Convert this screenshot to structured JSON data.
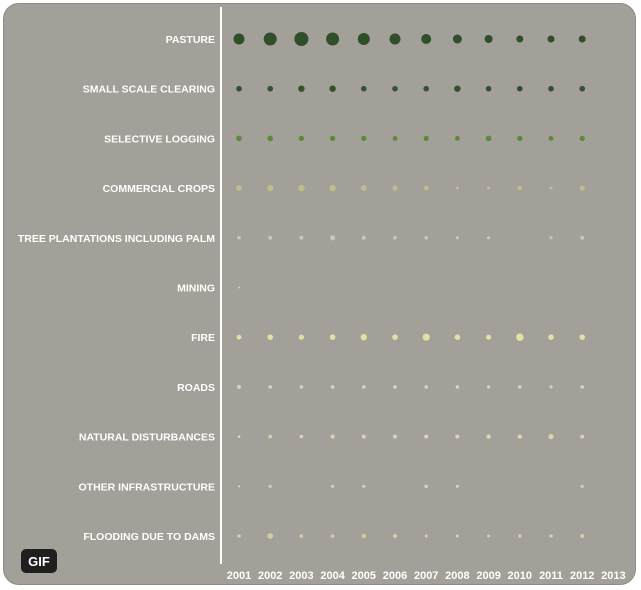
{
  "gif_badge": "GIF",
  "colors": {
    "background": "#a39f99",
    "axis": "#ffffff",
    "label": "#ffffff"
  },
  "chart_data": {
    "type": "scatter",
    "encoding": "bubble size = relative magnitude (estimated, unitless)",
    "x": [
      "2001",
      "2002",
      "2003",
      "2004",
      "2005",
      "2006",
      "2007",
      "2008",
      "2009",
      "2010",
      "2011",
      "2012",
      "2013"
    ],
    "categories": [
      "PASTURE",
      "SMALL SCALE CLEARING",
      "SELECTIVE LOGGING",
      "COMMERCIAL CROPS",
      "TREE PLANTATIONS INCLUDING PALM",
      "MINING",
      "FIRE",
      "ROADS",
      "NATURAL DISTURBANCES",
      "OTHER INFRASTRUCTURE",
      "FLOODING DUE TO DAMS"
    ],
    "series": [
      {
        "colors": [
          "#2f4f2a"
        ],
        "values": [
          5.5,
          6.5,
          7,
          6.5,
          6,
          5.5,
          5,
          4.5,
          4,
          3.5,
          3.5,
          3.5,
          0
        ]
      },
      {
        "colors": [
          "#33502f"
        ],
        "values": [
          2.8,
          2.8,
          3.2,
          3.2,
          2.8,
          2.8,
          2.8,
          3.2,
          2.8,
          2.8,
          2.8,
          2.8,
          0
        ]
      },
      {
        "colors": [
          "#5a8a3a"
        ],
        "values": [
          2.8,
          2.8,
          2.6,
          2.6,
          2.6,
          2.4,
          2.6,
          2.4,
          2.8,
          2.6,
          2.4,
          2.6,
          0
        ]
      },
      {
        "colors": [
          "#bdbf8a"
        ],
        "values": [
          2.8,
          3.2,
          3.2,
          3.2,
          2.8,
          2.6,
          2.4,
          1.6,
          1.6,
          2.2,
          1.6,
          2.6,
          0
        ]
      },
      {
        "colors": [
          "#c8c6be"
        ],
        "values": [
          1.8,
          2.0,
          2.0,
          2.6,
          2.0,
          1.8,
          1.8,
          1.6,
          1.6,
          0,
          1.6,
          2.0,
          0
        ]
      },
      {
        "colors": [
          "#d0cec8"
        ],
        "values": [
          1.0,
          0,
          0,
          0,
          0,
          0,
          0,
          0,
          0,
          0,
          0,
          0,
          0
        ]
      },
      {
        "colors": [
          "#e3e0a2"
        ],
        "values": [
          2.4,
          2.8,
          2.6,
          2.8,
          3.2,
          2.8,
          3.6,
          2.8,
          2.6,
          3.8,
          2.8,
          2.8,
          0
        ]
      },
      {
        "colors": [
          "#d4d2cc"
        ],
        "values": [
          2.0,
          1.8,
          1.8,
          1.8,
          1.8,
          1.8,
          1.8,
          1.8,
          1.6,
          1.8,
          1.6,
          1.8,
          0
        ]
      },
      {
        "colors": [
          "#d6d6b2"
        ],
        "values": [
          1.4,
          1.8,
          1.8,
          2.0,
          2.0,
          2.0,
          2.0,
          2.0,
          2.2,
          2.2,
          2.6,
          2.0,
          0
        ]
      },
      {
        "colors": [
          "#d2d0ca"
        ],
        "values": [
          1.2,
          1.6,
          0,
          1.6,
          1.6,
          0,
          1.8,
          1.6,
          0,
          0,
          0,
          1.6,
          0
        ]
      },
      {
        "colors": [
          "#d0d0a8"
        ],
        "values": [
          1.8,
          2.8,
          1.8,
          1.8,
          2.2,
          2.0,
          1.6,
          1.6,
          1.6,
          1.8,
          1.8,
          2.0,
          0
        ]
      }
    ]
  }
}
